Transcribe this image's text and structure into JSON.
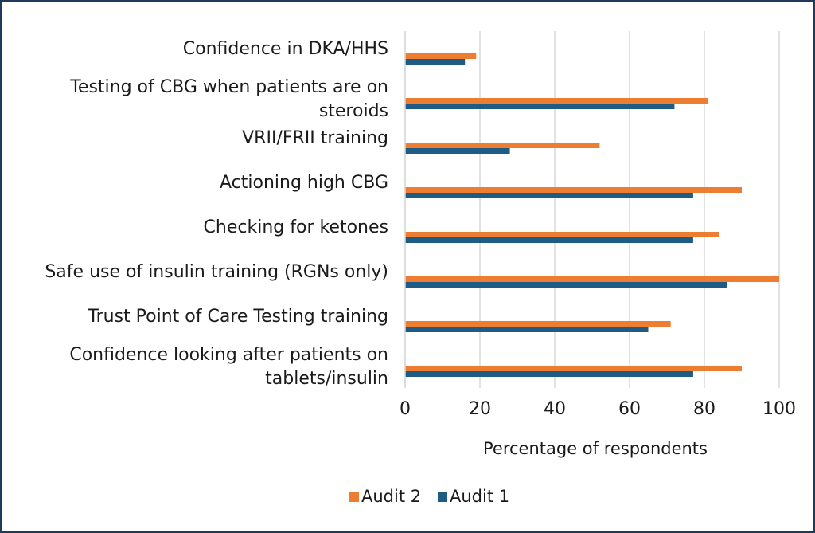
{
  "chart_data": {
    "type": "bar",
    "orientation": "horizontal",
    "title": "",
    "xlabel": "Percentage of respondents",
    "ylabel": "",
    "xlim": [
      0,
      100
    ],
    "xticks": [
      0,
      20,
      40,
      60,
      80,
      100
    ],
    "grid": true,
    "legend_position": "bottom",
    "categories": [
      [
        "Confidence in DKA/HHS"
      ],
      [
        "Testing of CBG when patients are on",
        "steroids"
      ],
      [
        "VRII/FRII training"
      ],
      [
        "Actioning high CBG"
      ],
      [
        "Checking for ketones"
      ],
      [
        "Safe use of insulin training (RGNs only)"
      ],
      [
        "Trust Point of Care Testing training"
      ],
      [
        "Confidence looking after patients on",
        "tablets/insulin"
      ]
    ],
    "series": [
      {
        "name": "Audit 2",
        "color": "#ED7D31",
        "values": [
          19,
          81,
          52,
          90,
          84,
          100,
          71,
          90
        ]
      },
      {
        "name": "Audit 1",
        "color": "#1F5C85",
        "values": [
          16,
          72,
          28,
          77,
          77,
          86,
          65,
          77
        ]
      }
    ],
    "legend": [
      "Audit 2",
      "Audit 1"
    ]
  }
}
